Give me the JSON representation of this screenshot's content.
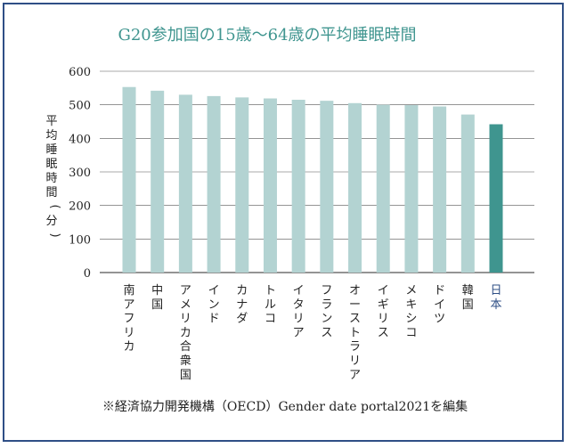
{
  "colors": {
    "bar_default": "#b3d3d2",
    "bar_highlight": "#3f958f",
    "title": "#3f958f",
    "highlight_label": "#2f4f86",
    "gridline": "#555555",
    "text": "#222222",
    "border": "#2f4f86"
  },
  "chart_data": {
    "type": "bar",
    "title": "G20参加国の15歳〜64歳の平均睡眠時間",
    "ylabel": "平均睡眠時間(分)",
    "xlabel": "",
    "ylim": [
      0,
      600
    ],
    "yticks": [
      0,
      100,
      200,
      300,
      400,
      500,
      600
    ],
    "grid": true,
    "categories": [
      "南アフリカ",
      "中国",
      "アメリカ合衆国",
      "インド",
      "カナダ",
      "トルコ",
      "イタリア",
      "フランス",
      "オーストラリア",
      "イギリス",
      "メキシコ",
      "ドイツ",
      "韓国",
      "日本"
    ],
    "values": [
      553,
      542,
      530,
      526,
      522,
      519,
      515,
      512,
      505,
      500,
      499,
      495,
      471,
      442
    ],
    "highlight": "日本",
    "note": "※経済協力開発機構（OECD）Gender date portal2021を編集"
  }
}
